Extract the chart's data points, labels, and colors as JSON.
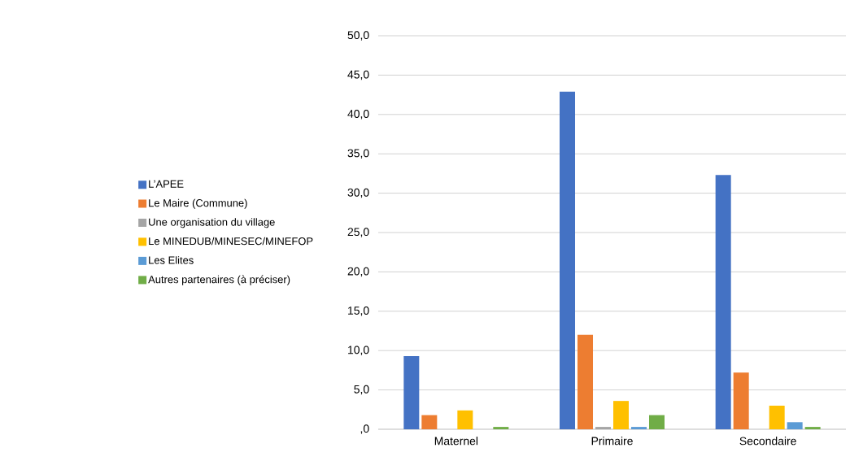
{
  "chart_data": {
    "type": "bar",
    "categories": [
      "Maternel",
      "Primaire",
      "Secondaire"
    ],
    "series": [
      {
        "name": "L’APEE",
        "color": "#4472c4",
        "values": [
          9.3,
          42.9,
          32.3
        ]
      },
      {
        "name": "Le Maire (Commune)",
        "color": "#ed7d31",
        "values": [
          1.8,
          12.0,
          7.2
        ]
      },
      {
        "name": "Une organisation du village",
        "color": "#a5a5a5",
        "values": [
          0,
          0.3,
          0
        ]
      },
      {
        "name": "Le MINEDUB/MINESEC/MINEFOP",
        "color": "#ffc000",
        "values": [
          2.4,
          3.6,
          3.0
        ]
      },
      {
        "name": "Les Elites",
        "color": "#5b9bd5",
        "values": [
          0,
          0.3,
          0.9
        ]
      },
      {
        "name": "Autres partenaires (à préciser)",
        "color": "#70ad47",
        "values": [
          0.3,
          1.8,
          0.3
        ]
      }
    ],
    "ylim": [
      0,
      50
    ],
    "yticks": [
      {
        "value": 0,
        "label": ",0"
      },
      {
        "value": 5,
        "label": "5,0"
      },
      {
        "value": 10,
        "label": "10,0"
      },
      {
        "value": 15,
        "label": "15,0"
      },
      {
        "value": 20,
        "label": "20,0"
      },
      {
        "value": 25,
        "label": "25,0"
      },
      {
        "value": 30,
        "label": "30,0"
      },
      {
        "value": 35,
        "label": "35,0"
      },
      {
        "value": 40,
        "label": "40,0"
      },
      {
        "value": 45,
        "label": "45,0"
      },
      {
        "value": 50,
        "label": "50,0"
      }
    ],
    "grid": "y",
    "legend": "left"
  }
}
